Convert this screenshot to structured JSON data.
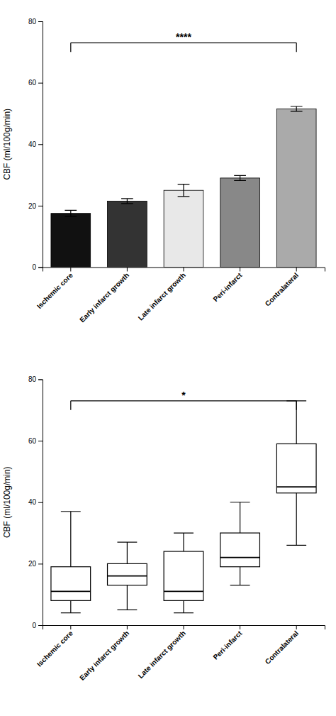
{
  "chart_data": [
    {
      "type": "bar",
      "categories": [
        "Ischemic core",
        "Early infarct growth",
        "Late infarct growth",
        "Peri-infarct",
        "Contralateral"
      ],
      "values": [
        17.5,
        21.5,
        25.0,
        29.0,
        51.5
      ],
      "errors": [
        1.0,
        0.8,
        2.0,
        0.8,
        0.8
      ],
      "colors": [
        "#111111",
        "#333333",
        "#e8e8e8",
        "#888888",
        "#aaaaaa"
      ],
      "ylabel": "CBF (ml/100g/min)",
      "ylim": [
        0,
        80
      ],
      "yticks": [
        0,
        20,
        40,
        60,
        80
      ],
      "grid": false,
      "bracket": {
        "text": "****",
        "from": "Ischemic core",
        "to": "Contralateral",
        "y": 73,
        "drop": 3
      }
    },
    {
      "type": "box",
      "categories": [
        "Ischemic core",
        "Early infarct growth",
        "Late infarct growth",
        "Peri-infarct",
        "Contralateral"
      ],
      "stats": [
        {
          "whislo": 4,
          "q1": 8,
          "med": 11,
          "q3": 19,
          "whishi": 37
        },
        {
          "whislo": 5,
          "q1": 13,
          "med": 16,
          "q3": 20,
          "whishi": 27
        },
        {
          "whislo": 4,
          "q1": 8,
          "med": 11,
          "q3": 24,
          "whishi": 30
        },
        {
          "whislo": 13,
          "q1": 19,
          "med": 22,
          "q3": 30,
          "whishi": 40
        },
        {
          "whislo": 26,
          "q1": 43,
          "med": 45,
          "q3": 59,
          "whishi": 73
        }
      ],
      "ylabel": "CBF (ml/100g/min)",
      "ylim": [
        0,
        80
      ],
      "yticks": [
        0,
        20,
        40,
        60,
        80
      ],
      "grid": false,
      "bracket": {
        "text": "*",
        "from": "Ischemic core",
        "to": "Contralateral",
        "y": 73,
        "drop": 3
      }
    }
  ]
}
